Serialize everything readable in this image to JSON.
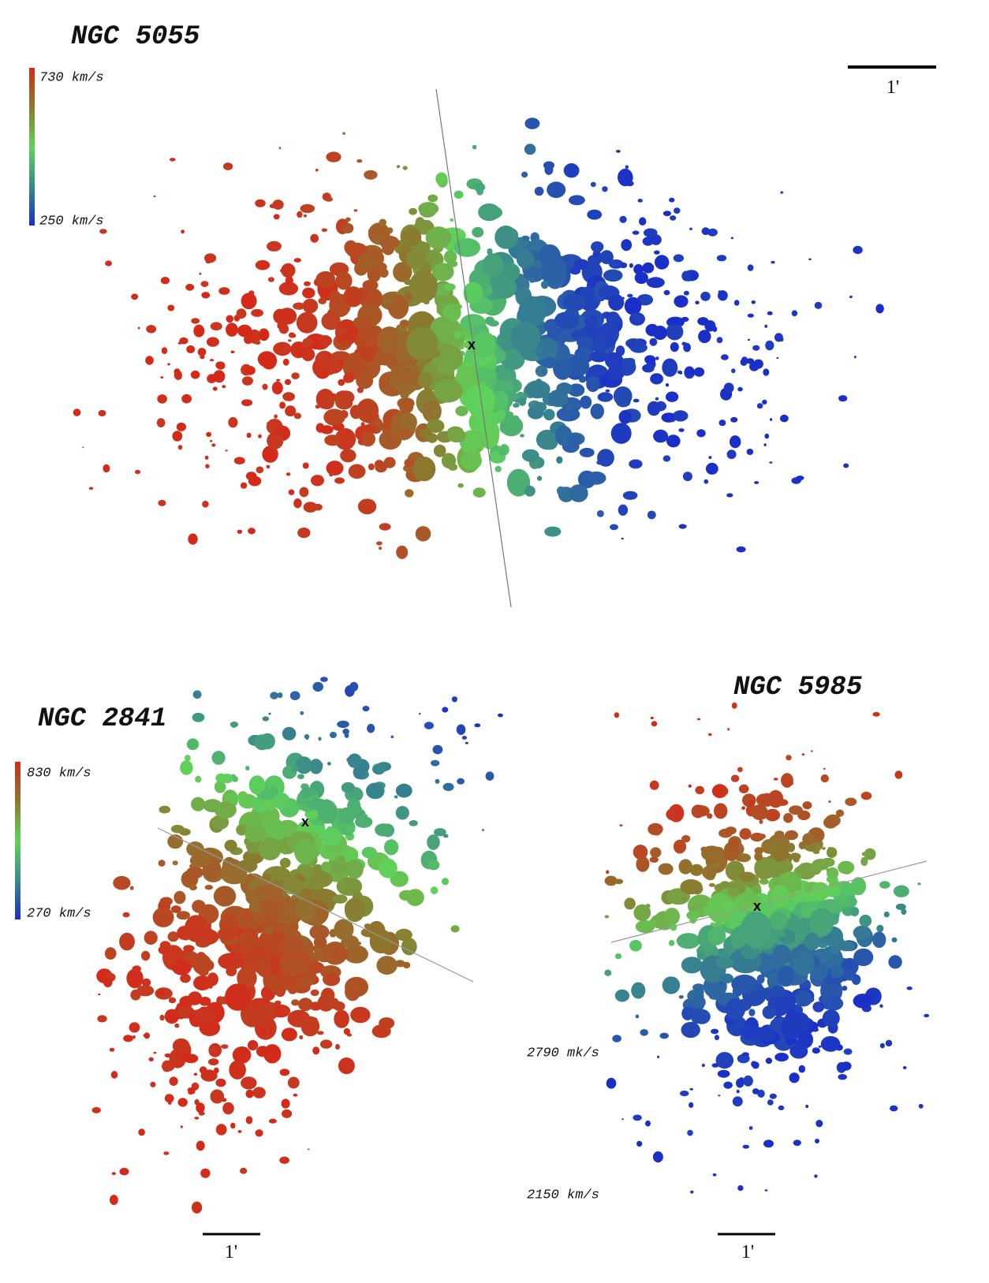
{
  "panels": [
    {
      "title": "NGC 5055",
      "colorbar": {
        "max": "730 km/s",
        "min": "250 km/s"
      },
      "scale_label": "1'",
      "center_label": "x"
    },
    {
      "title": "NGC 2841",
      "colorbar": {
        "max": "830 km/s",
        "min": "270 km/s"
      },
      "scale_label": "1'",
      "center_label": "x"
    },
    {
      "title": "NGC 5985",
      "colorbar": {
        "max": "2790 mk/s",
        "min": "2150 km/s"
      },
      "scale_label": "1'",
      "center_label": "x"
    }
  ]
}
